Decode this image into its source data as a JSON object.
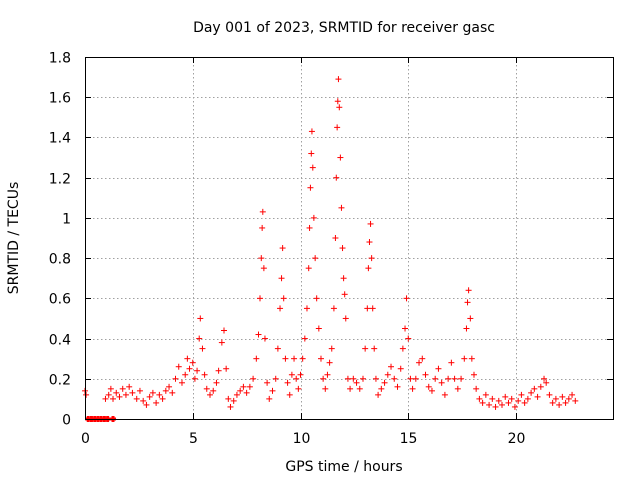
{
  "chart_data": {
    "type": "scatter",
    "title": "Day 001 of 2023, SRMTID for receiver gasc",
    "xlabel": "GPS time / hours",
    "ylabel": "SRMTID / TECUs",
    "xlim": [
      0,
      24.5
    ],
    "ylim": [
      0,
      1.8
    ],
    "x_ticks": [
      0,
      5,
      10,
      15,
      20
    ],
    "x_tick_labels": [
      "0",
      "5",
      "10",
      "15",
      "20"
    ],
    "y_ticks": [
      0,
      0.2,
      0.4,
      0.6,
      0.8,
      1.0,
      1.2,
      1.4,
      1.6,
      1.8
    ],
    "y_tick_labels": [
      "0",
      "0.2",
      "0.4",
      "0.6",
      "0.8",
      "1",
      "1.2",
      "1.4",
      "1.6",
      "1.8"
    ],
    "grid": true,
    "marker": "+",
    "color": "#ff0000",
    "series": [
      {
        "name": "SRMTID",
        "points": [
          [
            0.0,
            0.14
          ],
          [
            0.05,
            0.12
          ],
          [
            0.15,
            0.0
          ],
          [
            0.3,
            0.0
          ],
          [
            0.45,
            0.0
          ],
          [
            0.6,
            0.0
          ],
          [
            0.75,
            0.0
          ],
          [
            0.9,
            0.0
          ],
          [
            1.05,
            0.0
          ],
          [
            1.3,
            0.0
          ],
          [
            0.95,
            0.1
          ],
          [
            1.1,
            0.12
          ],
          [
            1.2,
            0.15
          ],
          [
            1.3,
            0.1
          ],
          [
            1.45,
            0.13
          ],
          [
            1.6,
            0.11
          ],
          [
            1.75,
            0.15
          ],
          [
            1.9,
            0.12
          ],
          [
            2.05,
            0.16
          ],
          [
            2.2,
            0.13
          ],
          [
            2.4,
            0.1
          ],
          [
            2.55,
            0.14
          ],
          [
            2.7,
            0.09
          ],
          [
            2.85,
            0.07
          ],
          [
            3.0,
            0.11
          ],
          [
            3.15,
            0.13
          ],
          [
            3.3,
            0.08
          ],
          [
            3.45,
            0.12
          ],
          [
            3.6,
            0.1
          ],
          [
            3.75,
            0.14
          ],
          [
            3.9,
            0.16
          ],
          [
            4.05,
            0.13
          ],
          [
            4.2,
            0.2
          ],
          [
            4.35,
            0.26
          ],
          [
            4.5,
            0.18
          ],
          [
            4.65,
            0.22
          ],
          [
            4.75,
            0.3
          ],
          [
            4.85,
            0.25
          ],
          [
            5.0,
            0.28
          ],
          [
            5.1,
            0.2
          ],
          [
            5.2,
            0.24
          ],
          [
            5.3,
            0.4
          ],
          [
            5.35,
            0.5
          ],
          [
            5.45,
            0.35
          ],
          [
            5.55,
            0.22
          ],
          [
            5.65,
            0.15
          ],
          [
            5.8,
            0.12
          ],
          [
            5.95,
            0.14
          ],
          [
            6.1,
            0.18
          ],
          [
            6.2,
            0.24
          ],
          [
            6.35,
            0.38
          ],
          [
            6.45,
            0.44
          ],
          [
            6.55,
            0.25
          ],
          [
            6.65,
            0.1
          ],
          [
            6.75,
            0.06
          ],
          [
            6.9,
            0.09
          ],
          [
            7.05,
            0.12
          ],
          [
            7.2,
            0.14
          ],
          [
            7.35,
            0.16
          ],
          [
            7.5,
            0.13
          ],
          [
            7.65,
            0.16
          ],
          [
            7.8,
            0.2
          ],
          [
            7.95,
            0.3
          ],
          [
            8.05,
            0.42
          ],
          [
            8.12,
            0.6
          ],
          [
            8.18,
            0.8
          ],
          [
            8.22,
            0.95
          ],
          [
            8.25,
            1.03
          ],
          [
            8.3,
            0.75
          ],
          [
            8.35,
            0.4
          ],
          [
            8.45,
            0.18
          ],
          [
            8.55,
            0.1
          ],
          [
            8.7,
            0.14
          ],
          [
            8.85,
            0.2
          ],
          [
            8.95,
            0.35
          ],
          [
            9.05,
            0.55
          ],
          [
            9.12,
            0.7
          ],
          [
            9.17,
            0.85
          ],
          [
            9.22,
            0.6
          ],
          [
            9.3,
            0.3
          ],
          [
            9.4,
            0.18
          ],
          [
            9.5,
            0.12
          ],
          [
            9.6,
            0.22
          ],
          [
            9.7,
            0.3
          ],
          [
            9.8,
            0.2
          ],
          [
            9.9,
            0.15
          ],
          [
            10.0,
            0.22
          ],
          [
            10.1,
            0.3
          ],
          [
            10.2,
            0.4
          ],
          [
            10.3,
            0.55
          ],
          [
            10.38,
            0.75
          ],
          [
            10.42,
            0.95
          ],
          [
            10.46,
            1.15
          ],
          [
            10.5,
            1.32
          ],
          [
            10.53,
            1.43
          ],
          [
            10.57,
            1.25
          ],
          [
            10.62,
            1.0
          ],
          [
            10.68,
            0.8
          ],
          [
            10.75,
            0.6
          ],
          [
            10.85,
            0.45
          ],
          [
            10.95,
            0.3
          ],
          [
            11.05,
            0.2
          ],
          [
            11.15,
            0.15
          ],
          [
            11.25,
            0.22
          ],
          [
            11.35,
            0.28
          ],
          [
            11.45,
            0.35
          ],
          [
            11.55,
            0.55
          ],
          [
            11.62,
            0.9
          ],
          [
            11.66,
            1.2
          ],
          [
            11.7,
            1.45
          ],
          [
            11.73,
            1.58
          ],
          [
            11.76,
            1.69
          ],
          [
            11.8,
            1.55
          ],
          [
            11.85,
            1.3
          ],
          [
            11.9,
            1.05
          ],
          [
            11.95,
            0.85
          ],
          [
            12.0,
            0.7
          ],
          [
            12.05,
            0.62
          ],
          [
            12.1,
            0.5
          ],
          [
            12.2,
            0.2
          ],
          [
            12.3,
            0.15
          ],
          [
            12.45,
            0.2
          ],
          [
            12.6,
            0.18
          ],
          [
            12.75,
            0.15
          ],
          [
            12.9,
            0.2
          ],
          [
            13.0,
            0.35
          ],
          [
            13.1,
            0.55
          ],
          [
            13.15,
            0.75
          ],
          [
            13.2,
            0.88
          ],
          [
            13.25,
            0.97
          ],
          [
            13.3,
            0.8
          ],
          [
            13.35,
            0.55
          ],
          [
            13.42,
            0.35
          ],
          [
            13.5,
            0.2
          ],
          [
            13.6,
            0.12
          ],
          [
            13.75,
            0.15
          ],
          [
            13.9,
            0.18
          ],
          [
            14.05,
            0.22
          ],
          [
            14.2,
            0.26
          ],
          [
            14.35,
            0.2
          ],
          [
            14.5,
            0.16
          ],
          [
            14.65,
            0.25
          ],
          [
            14.75,
            0.35
          ],
          [
            14.85,
            0.45
          ],
          [
            14.92,
            0.6
          ],
          [
            15.0,
            0.4
          ],
          [
            15.1,
            0.2
          ],
          [
            15.2,
            0.15
          ],
          [
            15.35,
            0.2
          ],
          [
            15.5,
            0.28
          ],
          [
            15.65,
            0.3
          ],
          [
            15.8,
            0.22
          ],
          [
            15.95,
            0.16
          ],
          [
            16.1,
            0.14
          ],
          [
            16.25,
            0.2
          ],
          [
            16.4,
            0.25
          ],
          [
            16.55,
            0.18
          ],
          [
            16.7,
            0.12
          ],
          [
            16.85,
            0.2
          ],
          [
            17.0,
            0.28
          ],
          [
            17.15,
            0.2
          ],
          [
            17.3,
            0.15
          ],
          [
            17.45,
            0.2
          ],
          [
            17.6,
            0.3
          ],
          [
            17.7,
            0.45
          ],
          [
            17.75,
            0.58
          ],
          [
            17.8,
            0.64
          ],
          [
            17.88,
            0.5
          ],
          [
            17.95,
            0.3
          ],
          [
            18.05,
            0.22
          ],
          [
            18.15,
            0.15
          ],
          [
            18.3,
            0.1
          ],
          [
            18.45,
            0.08
          ],
          [
            18.6,
            0.12
          ],
          [
            18.75,
            0.07
          ],
          [
            18.9,
            0.1
          ],
          [
            19.05,
            0.06
          ],
          [
            19.2,
            0.09
          ],
          [
            19.35,
            0.07
          ],
          [
            19.5,
            0.11
          ],
          [
            19.65,
            0.08
          ],
          [
            19.8,
            0.1
          ],
          [
            19.95,
            0.06
          ],
          [
            20.1,
            0.09
          ],
          [
            20.25,
            0.12
          ],
          [
            20.4,
            0.08
          ],
          [
            20.55,
            0.1
          ],
          [
            20.7,
            0.13
          ],
          [
            20.85,
            0.15
          ],
          [
            21.0,
            0.11
          ],
          [
            21.15,
            0.16
          ],
          [
            21.3,
            0.2
          ],
          [
            21.4,
            0.18
          ],
          [
            21.55,
            0.12
          ],
          [
            21.7,
            0.08
          ],
          [
            21.85,
            0.1
          ],
          [
            22.0,
            0.07
          ],
          [
            22.15,
            0.11
          ],
          [
            22.3,
            0.08
          ],
          [
            22.45,
            0.1
          ],
          [
            22.6,
            0.12
          ],
          [
            22.75,
            0.09
          ]
        ]
      }
    ]
  }
}
